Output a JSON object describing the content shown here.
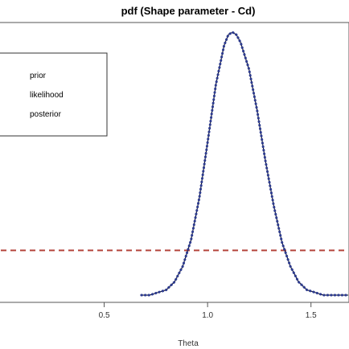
{
  "chart_data": {
    "type": "line",
    "title": "pdf (Shape parameter - Cd)",
    "xlabel": "Theta",
    "ylabel": "",
    "xlim": [
      0.0,
      1.68
    ],
    "ylim": [
      0,
      1
    ],
    "x_ticks": [
      0.5,
      1.0,
      1.5
    ],
    "x_tick_labels": [
      "0.5",
      "1.0",
      "1.5"
    ],
    "grid": false,
    "legend": {
      "placement": "top-left",
      "entries": [
        "prior",
        "likelihood",
        "posterior"
      ]
    },
    "series": [
      {
        "name": "prior",
        "style": "dashed",
        "color": "#b5453c",
        "x": [
          0.0,
          1.68
        ],
        "y": [
          0.17,
          0.17
        ]
      },
      {
        "name": "likelihood",
        "style": "solid",
        "color": "#000000",
        "x": [
          0.68,
          0.72,
          0.76,
          0.8,
          0.84,
          0.88,
          0.92,
          0.96,
          1.0,
          1.04,
          1.08,
          1.1,
          1.12,
          1.14,
          1.16,
          1.2,
          1.24,
          1.28,
          1.32,
          1.36,
          1.4,
          1.44,
          1.48,
          1.52,
          1.56,
          1.6,
          1.64,
          1.68
        ],
        "y": [
          0.0,
          0.0,
          0.01,
          0.02,
          0.05,
          0.11,
          0.21,
          0.37,
          0.58,
          0.8,
          0.95,
          0.99,
          1.0,
          0.99,
          0.96,
          0.86,
          0.7,
          0.51,
          0.34,
          0.2,
          0.11,
          0.05,
          0.02,
          0.01,
          0.0,
          0.0,
          0.0,
          0.0
        ]
      },
      {
        "name": "posterior",
        "style": "dotted",
        "color": "#2d3b8f",
        "x": [
          0.68,
          0.72,
          0.76,
          0.8,
          0.84,
          0.88,
          0.92,
          0.96,
          1.0,
          1.04,
          1.08,
          1.1,
          1.12,
          1.14,
          1.16,
          1.2,
          1.24,
          1.28,
          1.32,
          1.36,
          1.4,
          1.44,
          1.48,
          1.52,
          1.56,
          1.6,
          1.64,
          1.68
        ],
        "y": [
          0.0,
          0.0,
          0.01,
          0.02,
          0.05,
          0.11,
          0.21,
          0.37,
          0.58,
          0.8,
          0.95,
          0.99,
          1.0,
          0.99,
          0.96,
          0.86,
          0.7,
          0.51,
          0.34,
          0.2,
          0.11,
          0.05,
          0.02,
          0.01,
          0.0,
          0.0,
          0.0,
          0.0
        ]
      }
    ]
  }
}
